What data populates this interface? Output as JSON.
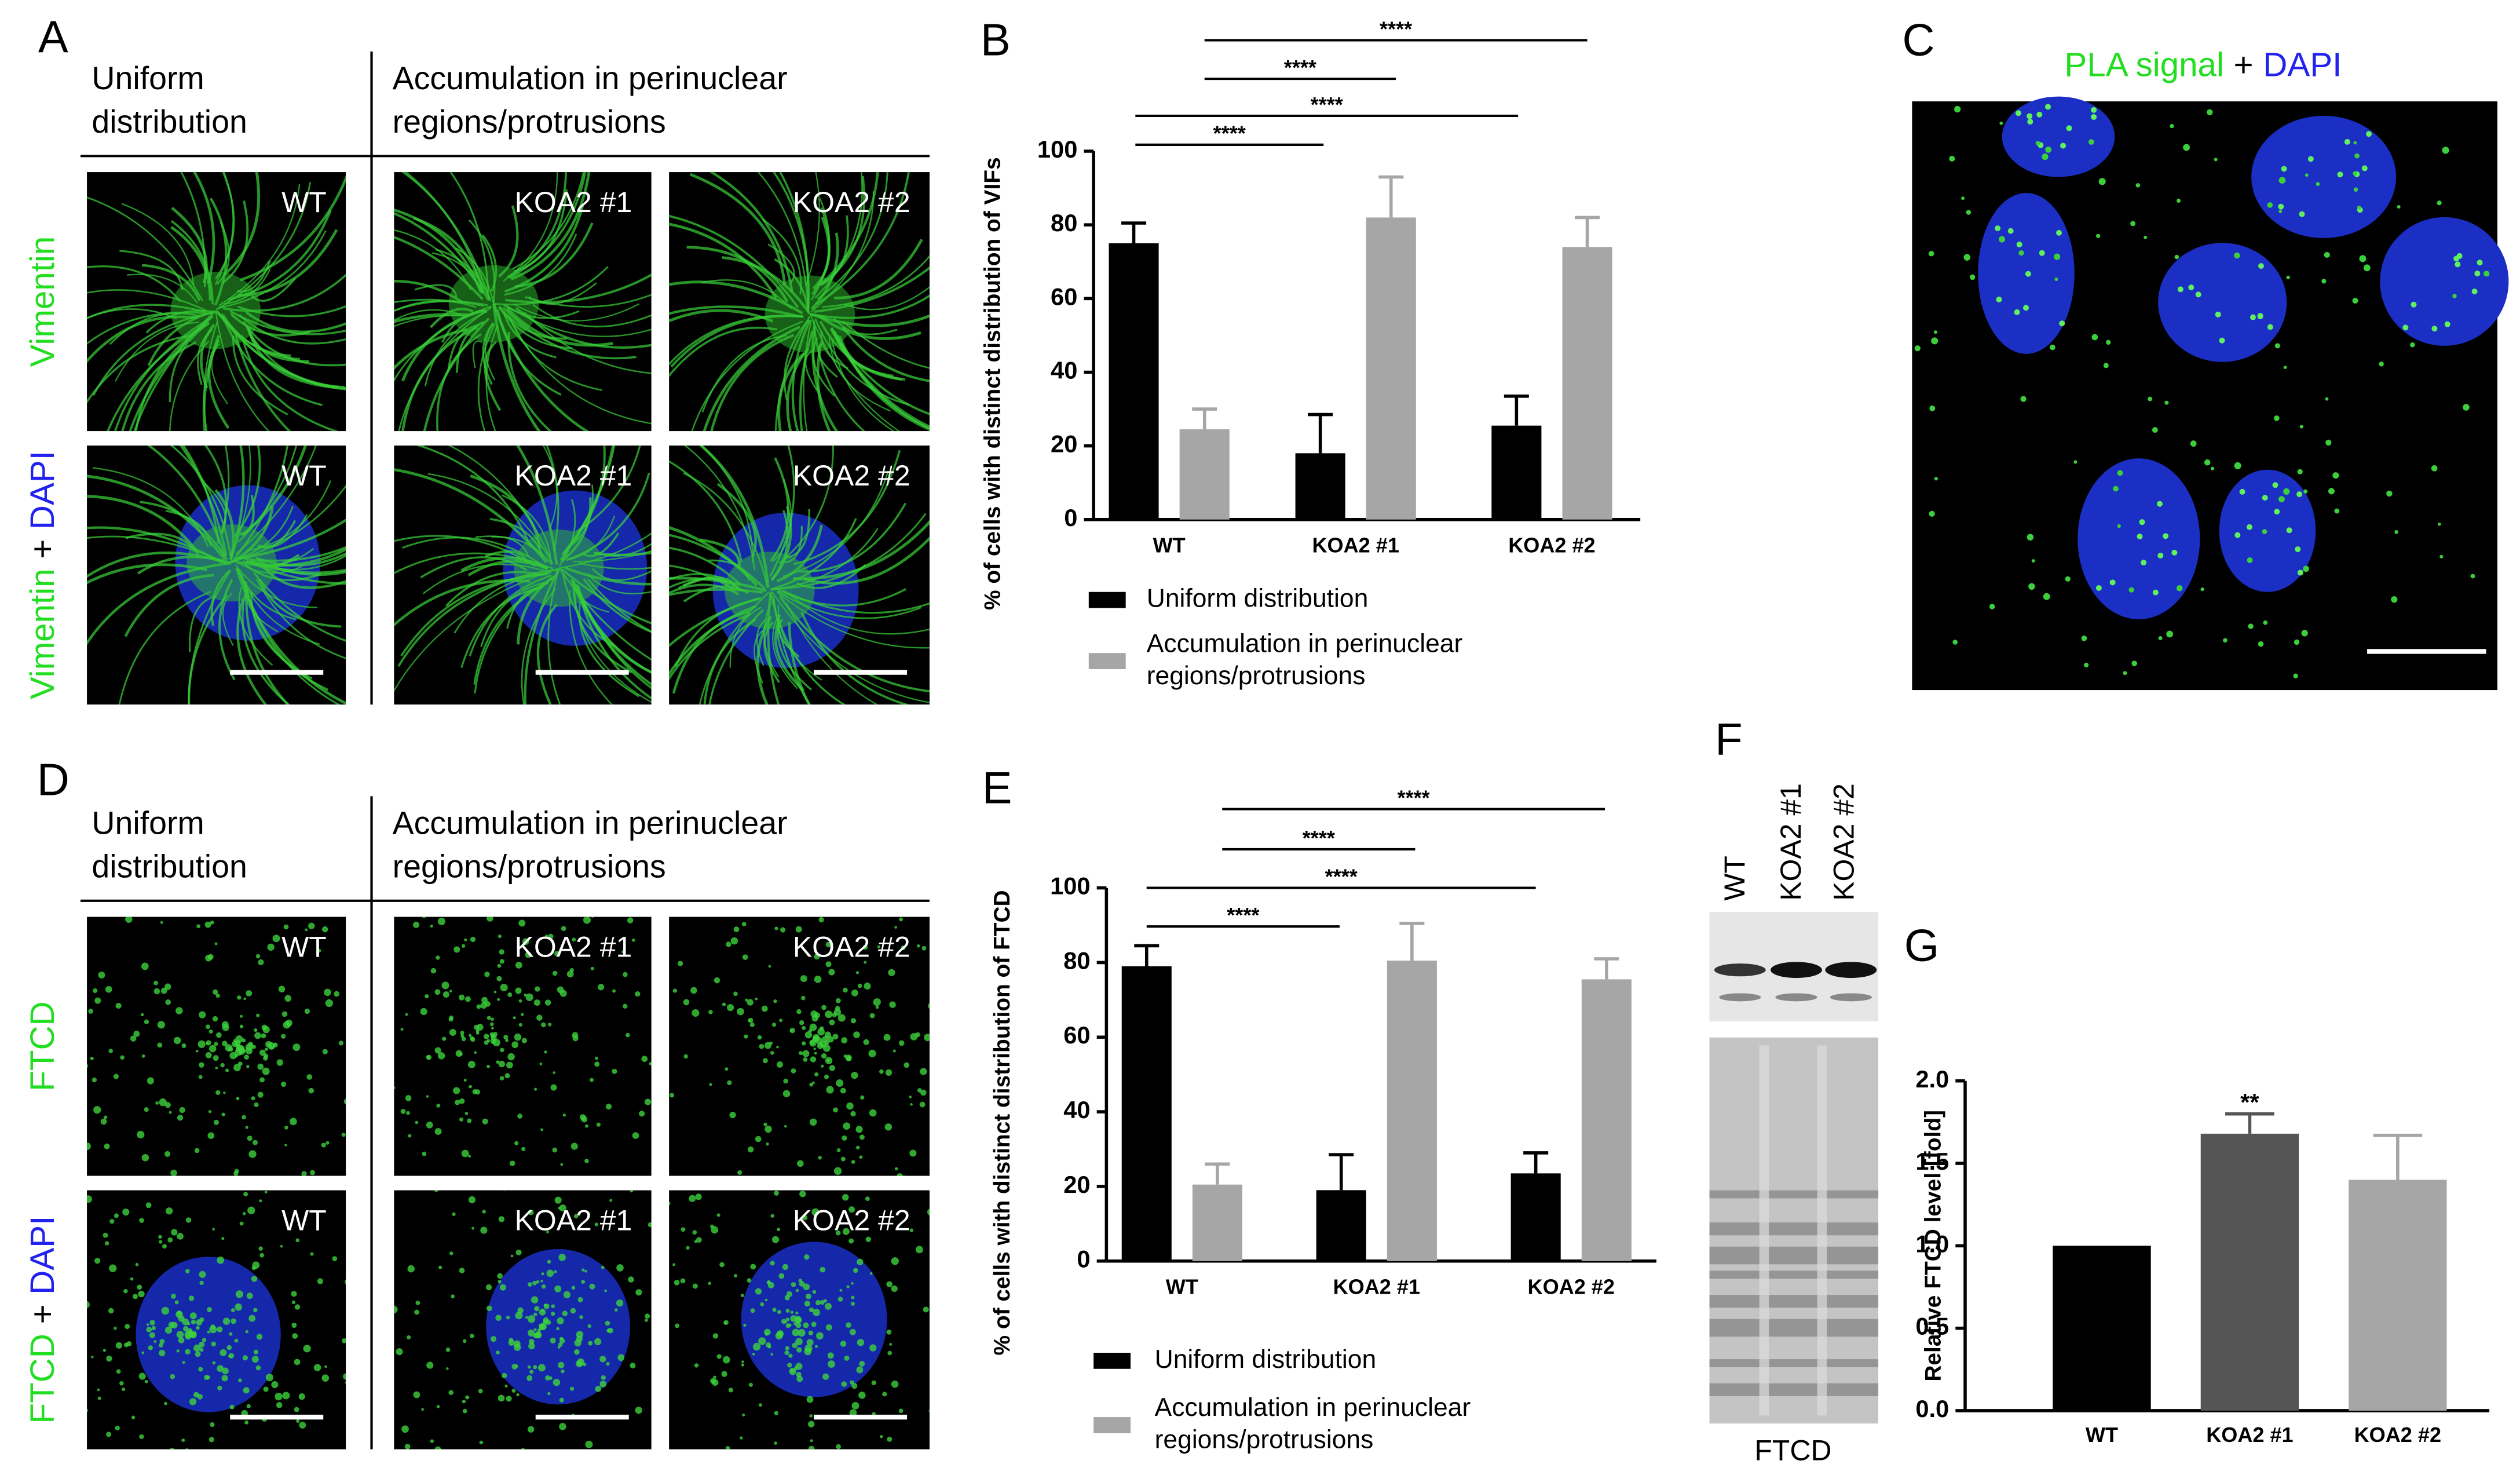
{
  "panel_letters": [
    "A",
    "B",
    "C",
    "D",
    "E",
    "F",
    "G"
  ],
  "panel_a": {
    "headers": [
      "Uniform distribution",
      "Accumulation in perinuclear regions/protrusions"
    ],
    "row_labels": [
      [
        "Vimentin"
      ],
      [
        "Vimentin",
        "+",
        "DAPI"
      ]
    ],
    "image_labels": [
      [
        "WT",
        "KOA2 #1",
        "KOA2 #2"
      ],
      [
        "WT",
        "KOA2 #1",
        "KOA2 #2"
      ]
    ]
  },
  "panel_c": {
    "title": [
      "PLA signal",
      "+",
      "DAPI"
    ]
  },
  "panel_d": {
    "headers": [
      "Uniform distribution",
      "Accumulation in perinuclear regions/protrusions"
    ],
    "row_labels": [
      [
        "FTCD"
      ],
      [
        "FTCD",
        "+",
        "DAPI"
      ]
    ],
    "image_labels": [
      [
        "WT",
        "KOA2 #1",
        "KOA2 #2"
      ],
      [
        "WT",
        "KOA2 #1",
        "KOA2 #2"
      ]
    ]
  },
  "panel_f": {
    "lane_labels": [
      "WT",
      "KOA2 #1",
      "KOA2 #2"
    ],
    "caption": "FTCD"
  },
  "chart_data": [
    {
      "type": "bar",
      "y_label": "% of cells with distinct distribution of VIFs",
      "categories": [
        "WT",
        "KOA2 #1",
        "KOA2 #2"
      ],
      "series": [
        {
          "name": "Uniform distribution",
          "color": "#000000",
          "values": [
            75,
            18,
            25.5
          ],
          "errors": [
            5.5,
            10.5,
            8
          ]
        },
        {
          "name": "Accumulation in perinuclear regions/protrusions",
          "color": "#a6a6a6",
          "values": [
            24.5,
            82,
            74
          ],
          "errors": [
            5.5,
            11,
            8
          ]
        }
      ],
      "ylim": [
        0,
        100
      ],
      "yticks": [
        0,
        20,
        40,
        60,
        80,
        100
      ],
      "annotations": [
        "****",
        "****",
        "****",
        "****"
      ]
    },
    {
      "type": "bar",
      "y_label": "% of cells with distinct distribution of FTCD",
      "categories": [
        "WT",
        "KOA2 #1",
        "KOA2 #2"
      ],
      "series": [
        {
          "name": "Uniform distribution",
          "color": "#000000",
          "values": [
            79,
            19,
            23.5
          ],
          "errors": [
            5.5,
            9.5,
            5.5
          ]
        },
        {
          "name": "Accumulation in perinuclear regions/protrusions",
          "color": "#a6a6a6",
          "values": [
            20.5,
            80.5,
            75.5
          ],
          "errors": [
            5.5,
            10,
            5.5
          ]
        }
      ],
      "ylim": [
        0,
        100
      ],
      "yticks": [
        0,
        20,
        40,
        60,
        80,
        100
      ],
      "annotations": [
        "****",
        "****",
        "****",
        "****"
      ]
    },
    {
      "type": "bar",
      "y_label": "Relative FTCD level [fold]",
      "categories": [
        "WT",
        "KOA2 #1",
        "KOA2 #2"
      ],
      "values": [
        1.0,
        1.68,
        1.4
      ],
      "errors": [
        null,
        0.12,
        0.27
      ],
      "colors": [
        "#000000",
        "#555555",
        "#a6a6a6"
      ],
      "ylim": [
        0,
        2
      ],
      "yticks": [
        {
          "value": 0,
          "label": "0.0"
        },
        0.5,
        {
          "value": 1,
          "label": "1.0"
        },
        1.5,
        {
          "value": 2,
          "label": "2.0"
        }
      ],
      "annotations": [
        "**"
      ]
    }
  ]
}
